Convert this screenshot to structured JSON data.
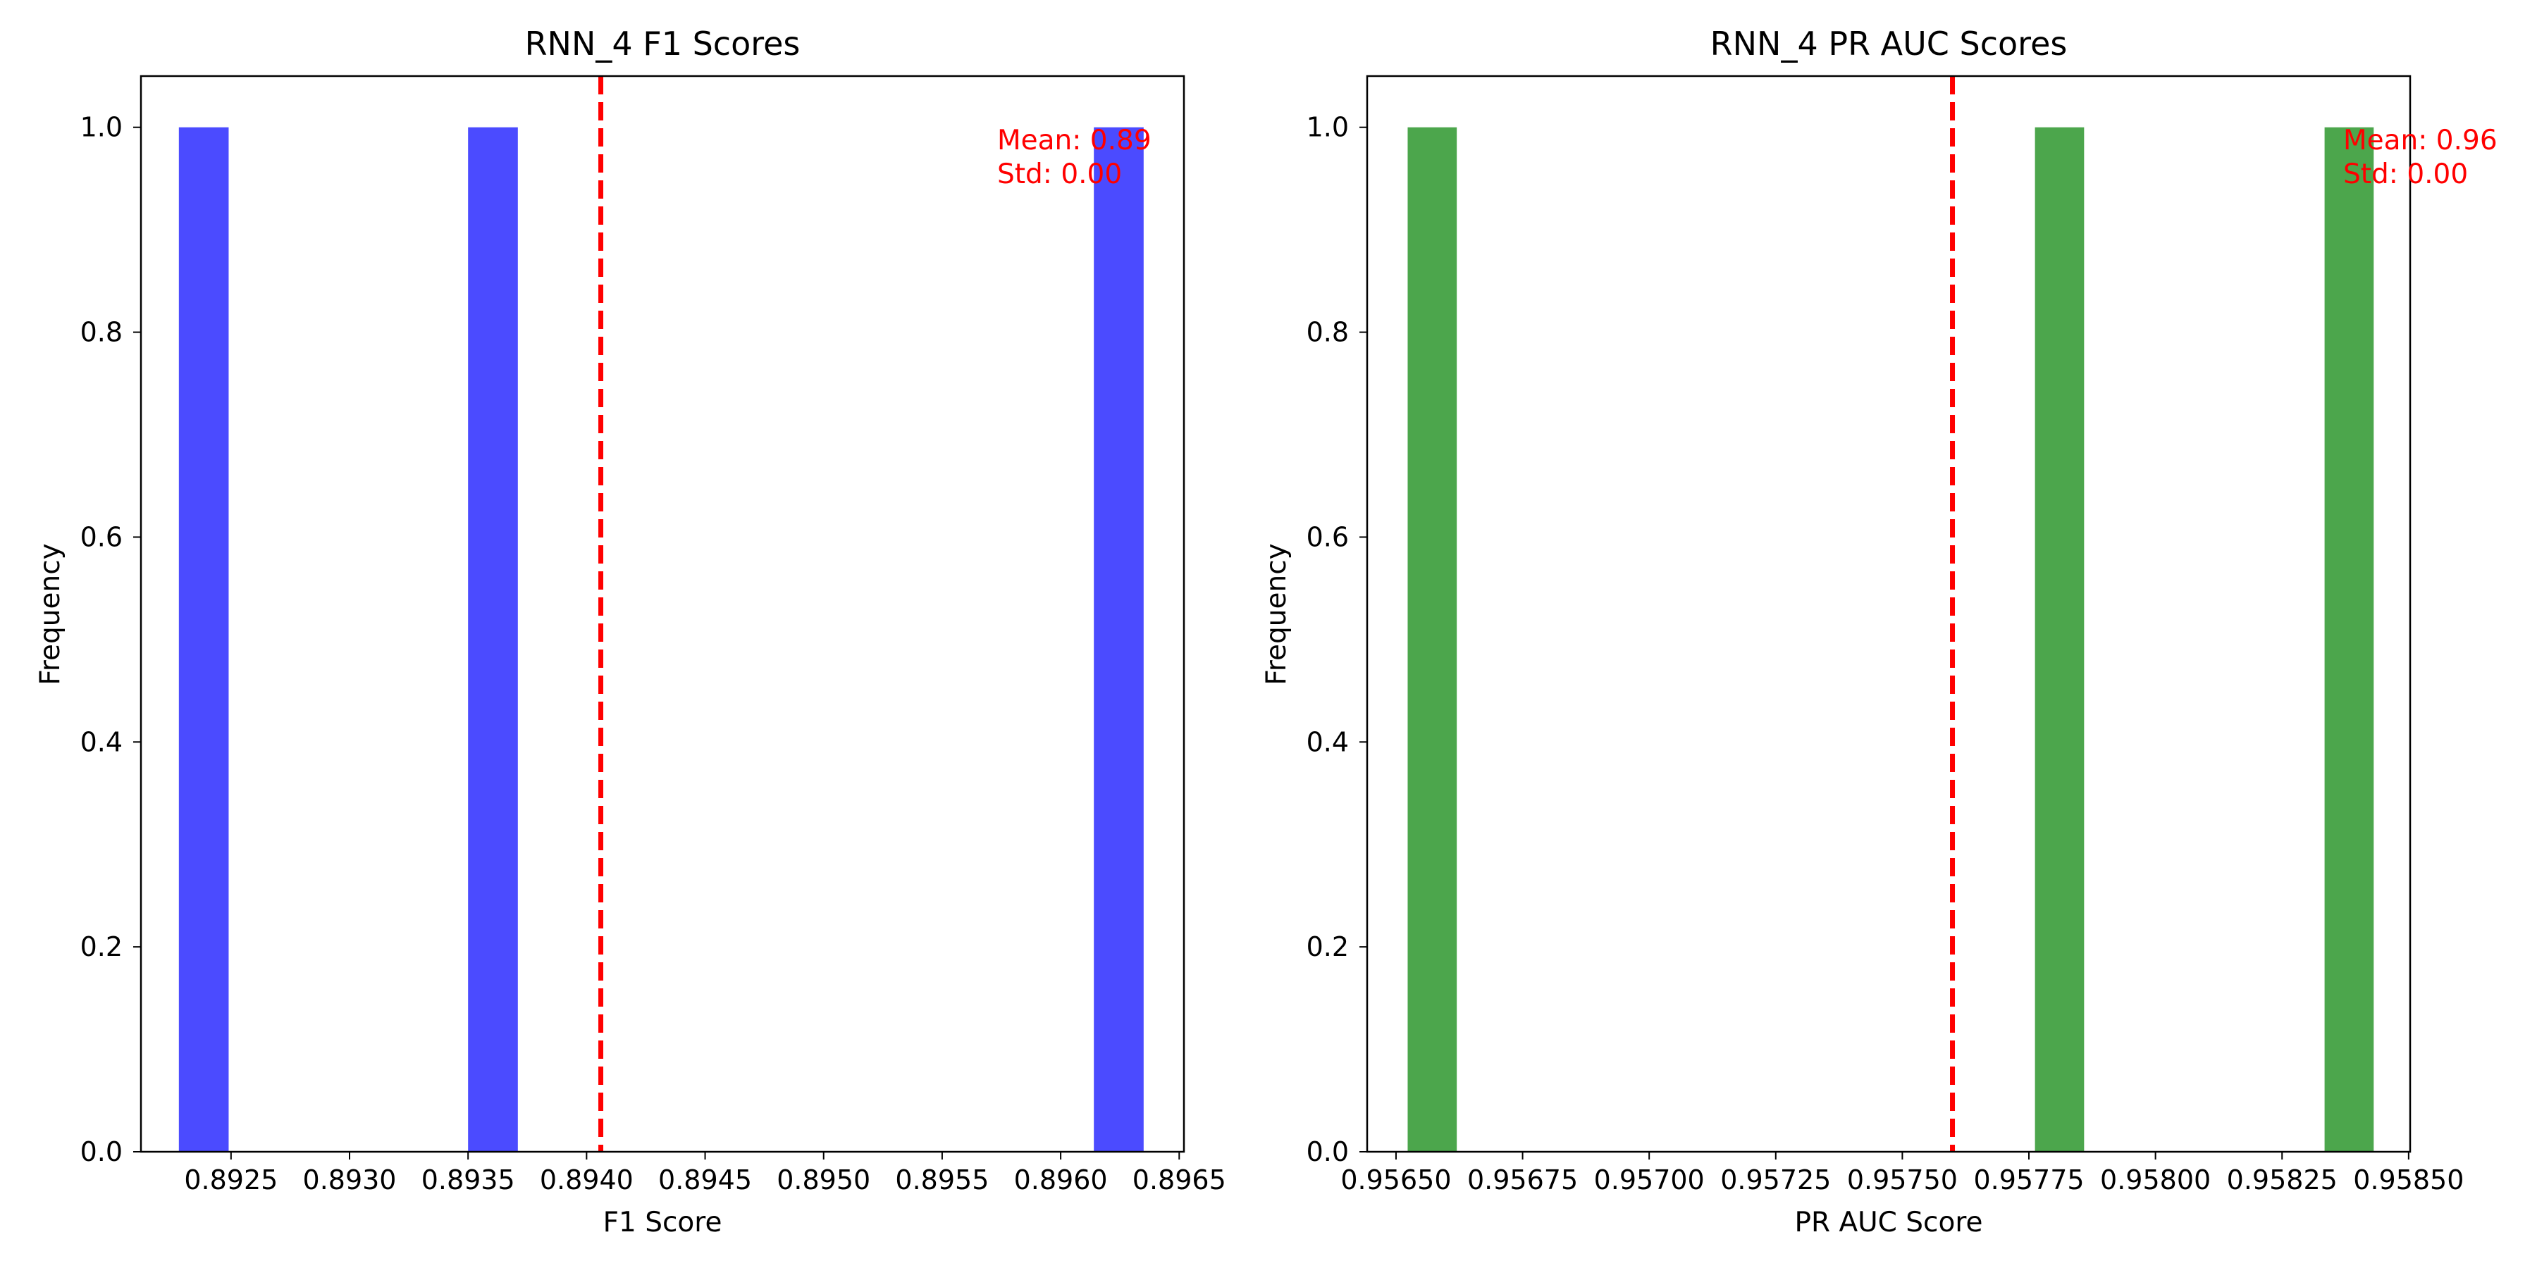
{
  "chart_data": [
    {
      "type": "bar",
      "title": "RNN_4 F1 Scores",
      "xlabel": "F1 Score",
      "ylabel": "Frequency",
      "xlim": [
        0.89212,
        0.89652
      ],
      "ylim": [
        0,
        1.05
      ],
      "xticks": [
        0.8925,
        0.893,
        0.8935,
        0.894,
        0.8945,
        0.895,
        0.8955,
        0.896,
        0.8965
      ],
      "xtick_labels": [
        "0.8925",
        "0.8930",
        "0.8935",
        "0.8940",
        "0.8945",
        "0.8950",
        "0.8955",
        "0.8960",
        "0.8965"
      ],
      "yticks": [
        0,
        0.2,
        0.4,
        0.6,
        0.8,
        1.0
      ],
      "ytick_labels": [
        "0.0",
        "0.2",
        "0.4",
        "0.6",
        "0.8",
        "1.0"
      ],
      "grid": false,
      "color": "#4b4bff",
      "bars": [
        {
          "x0": 0.89228,
          "x1": 0.89249,
          "value": 1
        },
        {
          "x0": 0.8935,
          "x1": 0.89371,
          "value": 1
        },
        {
          "x0": 0.89614,
          "x1": 0.89635,
          "value": 1
        }
      ],
      "mean_line": {
        "x": 0.89406,
        "color": "#ff0000"
      },
      "annotation": {
        "lines": [
          "Mean: 0.89",
          "Std: 0.00"
        ],
        "color": "#ff0000"
      }
    },
    {
      "type": "bar",
      "title": "RNN_4 PR AUC Scores",
      "xlabel": "PR AUC Score",
      "ylabel": "Frequency",
      "xlim": [
        0.956443,
        0.958503
      ],
      "ylim": [
        0,
        1.05
      ],
      "xticks": [
        0.9565,
        0.95675,
        0.957,
        0.95725,
        0.9575,
        0.95775,
        0.958,
        0.95825,
        0.9585
      ],
      "xtick_labels": [
        "0.95650",
        "0.95675",
        "0.95700",
        "0.95725",
        "0.95750",
        "0.95775",
        "0.95800",
        "0.95825",
        "0.95850"
      ],
      "yticks": [
        0,
        0.2,
        0.4,
        0.6,
        0.8,
        1.0
      ],
      "ytick_labels": [
        "0.0",
        "0.2",
        "0.4",
        "0.6",
        "0.8",
        "1.0"
      ],
      "grid": false,
      "color": "#4ca64c",
      "bars": [
        {
          "x0": 0.956523,
          "x1": 0.95662,
          "value": 1
        },
        {
          "x0": 0.957762,
          "x1": 0.957859,
          "value": 1
        },
        {
          "x0": 0.958334,
          "x1": 0.958431,
          "value": 1
        }
      ],
      "mean_line": {
        "x": 0.957599,
        "color": "#ff0000"
      },
      "annotation": {
        "lines": [
          "Mean: 0.96",
          "Std: 0.00"
        ],
        "color": "#ff0000"
      }
    }
  ]
}
